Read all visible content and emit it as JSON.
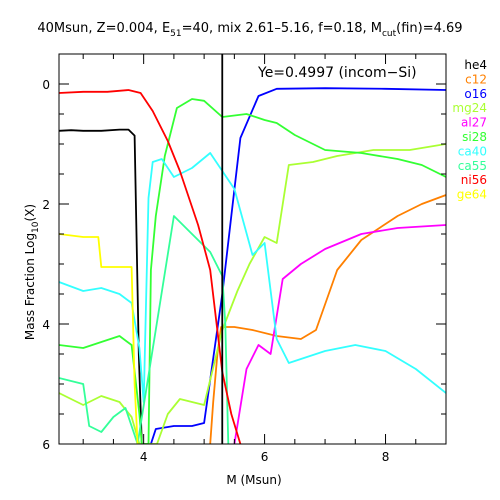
{
  "chart_data": {
    "type": "line",
    "title_parts": {
      "prefix": "40Msun, Z=0.004, E",
      "e_sub": "51",
      "mid": "=40, mix 2.61–5.16, f=0.18, M",
      "m_sub": "cut",
      "suffix": "(fin)=4.69"
    },
    "xlabel": "M (Msun)",
    "ylabel_parts": {
      "prefix": "Mass Fraction Log",
      "sub": "10",
      "suffix": "(X)"
    },
    "xlim": [
      2.6,
      9.0
    ],
    "ylim": [
      -6.0,
      0.5
    ],
    "xticks": [
      "4",
      "6",
      "8"
    ],
    "xtick_values": [
      4,
      6,
      8
    ],
    "yticks": [
      "0",
      "2",
      "4",
      "6"
    ],
    "ytick_values": [
      0,
      -2,
      -4,
      -6
    ],
    "grid": false,
    "legend_position": "right",
    "annotation": "Ye=0.4997 (incom−Si)",
    "vline_x": 5.3,
    "series": [
      {
        "name": "he4",
        "color": "#000000",
        "points": [
          [
            2.6,
            -0.78
          ],
          [
            2.8,
            -0.77
          ],
          [
            3.0,
            -0.78
          ],
          [
            3.3,
            -0.78
          ],
          [
            3.6,
            -0.76
          ],
          [
            3.75,
            -0.76
          ],
          [
            3.85,
            -0.86
          ],
          [
            3.92,
            -4.5
          ],
          [
            3.97,
            -6.0
          ]
        ]
      },
      {
        "name": "c12",
        "color": "#ff8000",
        "points": [
          [
            5.1,
            -6.0
          ],
          [
            5.15,
            -5.3
          ],
          [
            5.22,
            -4.5
          ],
          [
            5.28,
            -4.05
          ],
          [
            5.5,
            -4.05
          ],
          [
            5.8,
            -4.1
          ],
          [
            6.2,
            -4.2
          ],
          [
            6.6,
            -4.25
          ],
          [
            6.85,
            -4.1
          ],
          [
            7.2,
            -3.1
          ],
          [
            7.6,
            -2.6
          ],
          [
            8.2,
            -2.2
          ],
          [
            8.6,
            -2.0
          ],
          [
            9.0,
            -1.85
          ]
        ]
      },
      {
        "name": "o16",
        "color": "#0000ff",
        "points": [
          [
            4.12,
            -6.0
          ],
          [
            4.2,
            -5.75
          ],
          [
            4.5,
            -5.7
          ],
          [
            4.8,
            -5.7
          ],
          [
            5.0,
            -5.65
          ],
          [
            5.3,
            -3.5
          ],
          [
            5.45,
            -2.2
          ],
          [
            5.6,
            -0.9
          ],
          [
            5.9,
            -0.2
          ],
          [
            6.2,
            -0.08
          ],
          [
            7.0,
            -0.07
          ],
          [
            8.0,
            -0.08
          ],
          [
            9.0,
            -0.1
          ]
        ]
      },
      {
        "name": "mg24",
        "color": "#aaff33",
        "points": [
          [
            2.6,
            -5.15
          ],
          [
            3.0,
            -5.35
          ],
          [
            3.3,
            -5.2
          ],
          [
            3.6,
            -5.3
          ],
          [
            3.8,
            -5.55
          ],
          [
            3.93,
            -6.0
          ],
          [
            4.22,
            -6.0
          ],
          [
            4.4,
            -5.5
          ],
          [
            4.6,
            -5.25
          ],
          [
            5.0,
            -5.35
          ],
          [
            5.3,
            -4.1
          ],
          [
            5.55,
            -3.45
          ],
          [
            5.75,
            -3.0
          ],
          [
            6.0,
            -2.55
          ],
          [
            6.2,
            -2.65
          ],
          [
            6.4,
            -1.35
          ],
          [
            6.8,
            -1.3
          ],
          [
            7.2,
            -1.2
          ],
          [
            7.8,
            -1.1
          ],
          [
            8.4,
            -1.1
          ],
          [
            9.0,
            -1.0
          ]
        ]
      },
      {
        "name": "al27",
        "color": "#ff00ff",
        "points": [
          [
            5.5,
            -6.0
          ],
          [
            5.7,
            -4.75
          ],
          [
            5.9,
            -4.35
          ],
          [
            6.1,
            -4.5
          ],
          [
            6.3,
            -3.25
          ],
          [
            6.6,
            -3.0
          ],
          [
            7.0,
            -2.75
          ],
          [
            7.6,
            -2.5
          ],
          [
            8.2,
            -2.4
          ],
          [
            9.0,
            -2.35
          ]
        ]
      },
      {
        "name": "si28",
        "color": "#33ff33",
        "points": [
          [
            2.6,
            -4.35
          ],
          [
            3.0,
            -4.4
          ],
          [
            3.3,
            -4.3
          ],
          [
            3.6,
            -4.2
          ],
          [
            3.8,
            -4.35
          ],
          [
            3.93,
            -5.5
          ],
          [
            3.97,
            -6.0
          ],
          [
            4.08,
            -6.0
          ],
          [
            4.12,
            -3.1
          ],
          [
            4.2,
            -2.2
          ],
          [
            4.35,
            -1.2
          ],
          [
            4.55,
            -0.4
          ],
          [
            4.8,
            -0.25
          ],
          [
            5.0,
            -0.28
          ],
          [
            5.3,
            -0.55
          ],
          [
            5.7,
            -0.5
          ],
          [
            6.0,
            -0.6
          ],
          [
            6.2,
            -0.65
          ],
          [
            6.5,
            -0.85
          ],
          [
            7.0,
            -1.1
          ],
          [
            7.6,
            -1.15
          ],
          [
            8.2,
            -1.25
          ],
          [
            8.6,
            -1.35
          ],
          [
            9.0,
            -1.55
          ]
        ]
      },
      {
        "name": "ca40",
        "color": "#33ffff",
        "points": [
          [
            2.6,
            -3.3
          ],
          [
            3.0,
            -3.45
          ],
          [
            3.3,
            -3.4
          ],
          [
            3.6,
            -3.5
          ],
          [
            3.8,
            -3.65
          ],
          [
            3.93,
            -4.4
          ],
          [
            4.0,
            -5.3
          ],
          [
            4.08,
            -1.9
          ],
          [
            4.15,
            -1.3
          ],
          [
            4.3,
            -1.25
          ],
          [
            4.5,
            -1.55
          ],
          [
            4.8,
            -1.4
          ],
          [
            5.1,
            -1.15
          ],
          [
            5.3,
            -1.45
          ],
          [
            5.5,
            -1.75
          ],
          [
            5.8,
            -2.85
          ],
          [
            6.0,
            -2.65
          ],
          [
            6.2,
            -4.25
          ],
          [
            6.4,
            -4.65
          ],
          [
            7.0,
            -4.45
          ],
          [
            7.5,
            -4.35
          ],
          [
            8.0,
            -4.45
          ],
          [
            8.5,
            -4.75
          ],
          [
            9.0,
            -5.15
          ]
        ]
      },
      {
        "name": "ca55",
        "color": "#33ff99",
        "points": [
          [
            2.6,
            -4.9
          ],
          [
            3.0,
            -5.0
          ],
          [
            3.1,
            -5.7
          ],
          [
            3.3,
            -5.8
          ],
          [
            3.5,
            -5.55
          ],
          [
            3.7,
            -5.4
          ],
          [
            3.85,
            -5.85
          ],
          [
            3.9,
            -6.0
          ],
          [
            4.5,
            -2.2
          ],
          [
            4.8,
            -2.5
          ],
          [
            5.1,
            -2.8
          ],
          [
            5.3,
            -3.2
          ],
          [
            5.35,
            -4.0
          ],
          [
            5.4,
            -6.0
          ]
        ]
      },
      {
        "name": "ni56",
        "color": "#ff0000",
        "points": [
          [
            2.6,
            -0.15
          ],
          [
            3.0,
            -0.13
          ],
          [
            3.4,
            -0.13
          ],
          [
            3.75,
            -0.1
          ],
          [
            3.95,
            -0.15
          ],
          [
            4.15,
            -0.45
          ],
          [
            4.4,
            -0.95
          ],
          [
            4.6,
            -1.45
          ],
          [
            4.9,
            -2.35
          ],
          [
            5.1,
            -3.1
          ],
          [
            5.3,
            -4.8
          ],
          [
            5.45,
            -5.5
          ],
          [
            5.6,
            -6.0
          ]
        ]
      },
      {
        "name": "ge64",
        "color": "#ffff00",
        "points": [
          [
            2.6,
            -2.5
          ],
          [
            3.0,
            -2.55
          ],
          [
            3.25,
            -2.55
          ],
          [
            3.3,
            -3.05
          ],
          [
            3.8,
            -3.05
          ],
          [
            3.85,
            -5.0
          ],
          [
            3.9,
            -6.0
          ]
        ]
      }
    ]
  }
}
